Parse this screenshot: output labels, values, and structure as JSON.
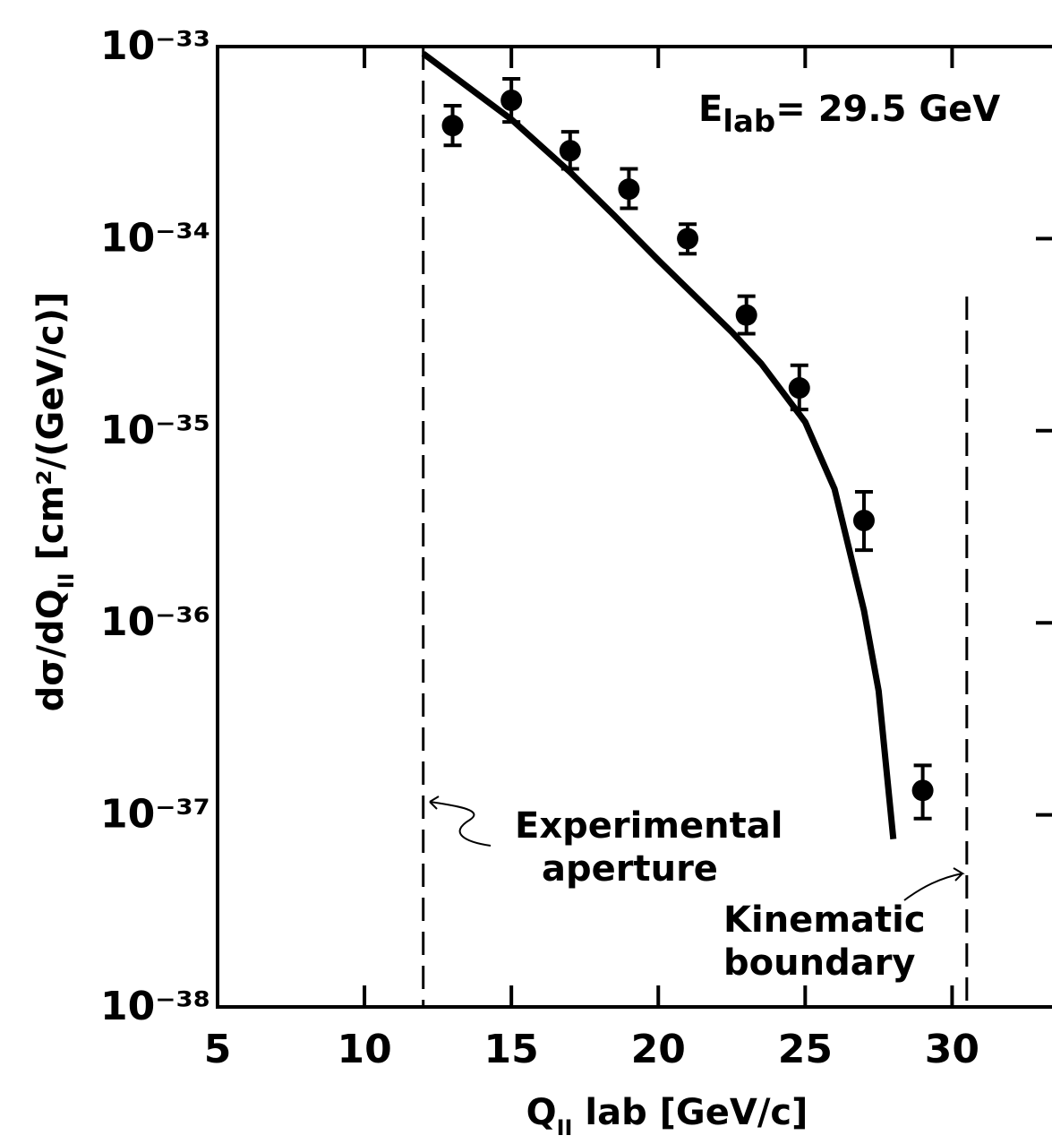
{
  "chart_data": {
    "type": "scatter",
    "x_label": {
      "main": "Q",
      "sub": "II",
      "rest": " lab  [GeV/c]"
    },
    "y_label": {
      "main": "dσ/dQ",
      "sub": "II",
      "rest": " [cm²/(GeV/c)]"
    },
    "annotation": {
      "main": "E",
      "sub": "lab",
      "rest": "= 29.5 GeV"
    },
    "xlim": [
      5,
      33.4
    ],
    "ylim": [
      1e-38,
      1e-33
    ],
    "log_y": true,
    "xticks": [
      5,
      10,
      15,
      20,
      25,
      30
    ],
    "yticks": [
      {
        "value": 1e-38,
        "label": "10⁻³⁸"
      },
      {
        "value": 1e-37,
        "label": "10⁻³⁷"
      },
      {
        "value": 1e-36,
        "label": "10⁻³⁶"
      },
      {
        "value": 1e-35,
        "label": "10⁻³⁵"
      },
      {
        "value": 1e-34,
        "label": "10⁻³⁴"
      },
      {
        "value": 1e-33,
        "label": "10⁻³³"
      }
    ],
    "series": [
      {
        "kind": "points",
        "color": "#000",
        "x": [
          13,
          15,
          17,
          19,
          21,
          23,
          24.8,
          27,
          29
        ],
        "y": [
          3.88e-34,
          5.25e-34,
          2.87e-34,
          1.81e-34,
          1e-34,
          4e-35,
          1.67e-35,
          3.41e-36,
          1.34e-37
        ],
        "err_low": [
          3.06e-34,
          4.05e-34,
          2.31e-34,
          1.44e-34,
          8.34e-35,
          3.2e-35,
          1.29e-35,
          2.39e-36,
          9.57e-38
        ],
        "err_high": [
          4.92e-34,
          6.79e-34,
          3.6e-34,
          2.31e-34,
          1.19e-34,
          5.02e-35,
          2.19e-35,
          4.81e-36,
          1.81e-37
        ]
      },
      {
        "kind": "line",
        "color": "#000",
        "x": [
          12,
          15,
          17,
          18.5,
          20,
          22.5,
          23.5,
          25,
          26,
          27,
          27.5,
          28
        ],
        "y": [
          9.2e-34,
          4.18e-34,
          2.22e-34,
          1.32e-34,
          7.73e-35,
          3.27e-35,
          2.24e-35,
          1.11e-35,
          4.97e-36,
          1.16e-36,
          4.42e-37,
          7.48e-38
        ]
      }
    ],
    "vlines": [
      {
        "x": 12,
        "y_top": 1e-33,
        "label": [
          "Experimental",
          "aperture"
        ]
      },
      {
        "x": 30.5,
        "y_top": 5e-35,
        "label": [
          "Kinematic",
          "boundary"
        ]
      }
    ]
  }
}
